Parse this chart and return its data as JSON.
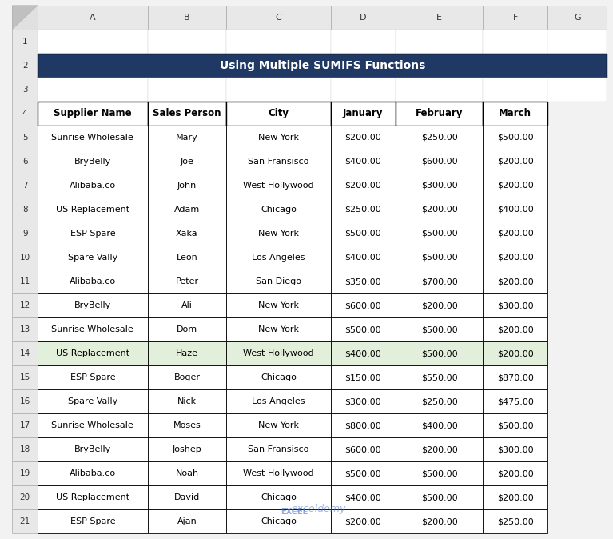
{
  "title": "Using Multiple SUMIFS Functions",
  "title_bg": "#1F3864",
  "title_color": "#FFFFFF",
  "col_headers": [
    "Supplier Name",
    "Sales Person",
    "City",
    "January",
    "February",
    "March"
  ],
  "rows": [
    [
      "Sunrise Wholesale",
      "Mary",
      "New York",
      "$200.00",
      "$250.00",
      "$500.00"
    ],
    [
      "BryBelly",
      "Joe",
      "San Fransisco",
      "$400.00",
      "$600.00",
      "$200.00"
    ],
    [
      "Alibaba.co",
      "John",
      "West Hollywood",
      "$200.00",
      "$300.00",
      "$200.00"
    ],
    [
      "US Replacement",
      "Adam",
      "Chicago",
      "$250.00",
      "$200.00",
      "$400.00"
    ],
    [
      "ESP Spare",
      "Xaka",
      "New York",
      "$500.00",
      "$500.00",
      "$200.00"
    ],
    [
      "Spare Vally",
      "Leon",
      "Los Angeles",
      "$400.00",
      "$500.00",
      "$200.00"
    ],
    [
      "Alibaba.co",
      "Peter",
      "San Diego",
      "$350.00",
      "$700.00",
      "$200.00"
    ],
    [
      "BryBelly",
      "Ali",
      "New York",
      "$600.00",
      "$200.00",
      "$300.00"
    ],
    [
      "Sunrise Wholesale",
      "Dom",
      "New York",
      "$500.00",
      "$500.00",
      "$200.00"
    ],
    [
      "US Replacement",
      "Haze",
      "West Hollywood",
      "$400.00",
      "$500.00",
      "$200.00"
    ],
    [
      "ESP Spare",
      "Boger",
      "Chicago",
      "$150.00",
      "$550.00",
      "$870.00"
    ],
    [
      "Spare Vally",
      "Nick",
      "Los Angeles",
      "$300.00",
      "$250.00",
      "$475.00"
    ],
    [
      "Sunrise Wholesale",
      "Moses",
      "New York",
      "$800.00",
      "$400.00",
      "$500.00"
    ],
    [
      "BryBelly",
      "Joshep",
      "San Fransisco",
      "$600.00",
      "$200.00",
      "$300.00"
    ],
    [
      "Alibaba.co",
      "Noah",
      "West Hollywood",
      "$500.00",
      "$500.00",
      "$200.00"
    ],
    [
      "US Replacement",
      "David",
      "Chicago",
      "$400.00",
      "$500.00",
      "$200.00"
    ],
    [
      "ESP Spare",
      "Ajan",
      "Chicago",
      "$200.00",
      "$200.00",
      "$250.00"
    ]
  ],
  "header_bg": "#FFFFFF",
  "header_text_color": "#000000",
  "row_bg_even": "#FFFFFF",
  "row_bg_odd": "#FFFFFF",
  "row_text_color": "#000000",
  "border_color": "#000000",
  "excel_col_labels": [
    "A",
    "B",
    "C",
    "D",
    "E",
    "F",
    "G"
  ],
  "excel_row_labels": [
    "1",
    "2",
    "3",
    "4",
    "5",
    "6",
    "7",
    "8",
    "9",
    "10",
    "11",
    "12",
    "13",
    "14",
    "15",
    "16",
    "17",
    "18",
    "19",
    "20",
    "21"
  ],
  "highlight_row": 17,
  "highlight_row_color": "#E2EFDA",
  "watermark_text": "exceldemy",
  "fig_width": 7.67,
  "fig_height": 6.74,
  "bg_color": "#F2F2F2"
}
